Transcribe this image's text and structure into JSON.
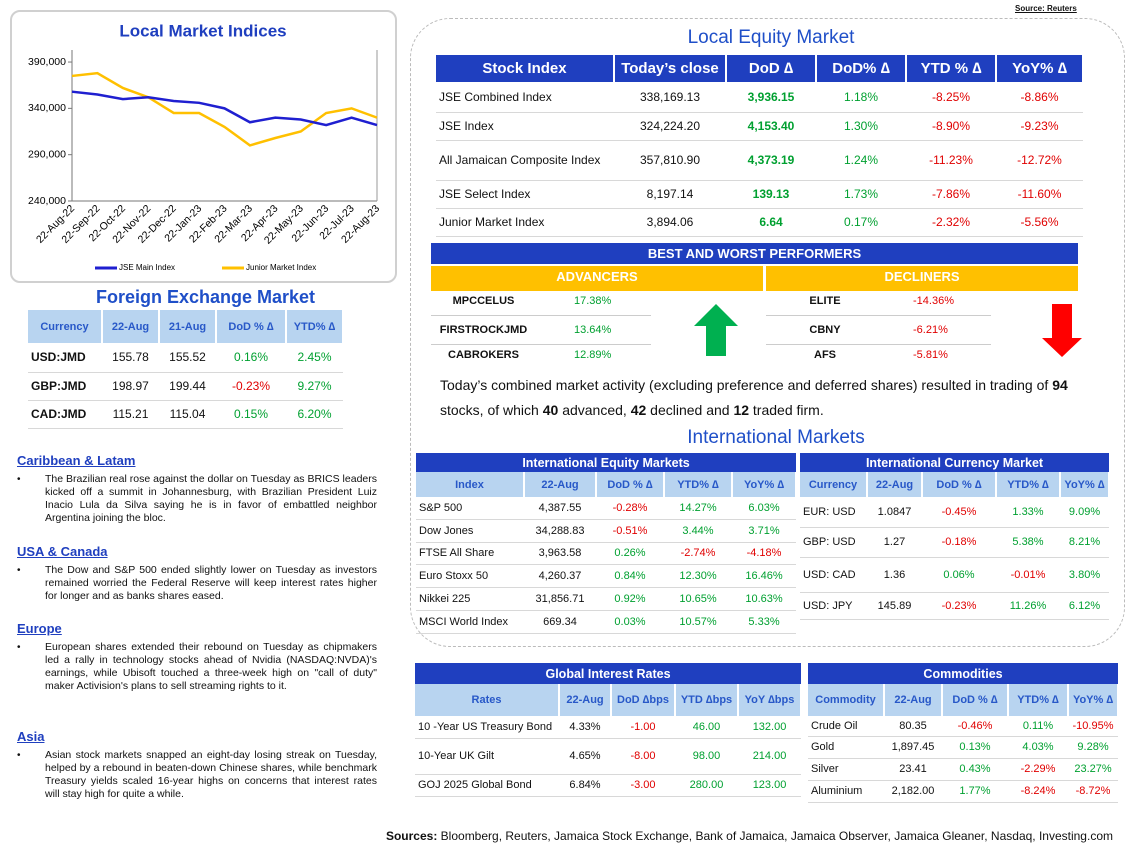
{
  "source_top": "Source: Reuters",
  "chart_data": {
    "type": "line",
    "title": "Local Market Indices",
    "categories": [
      "22-Aug-22",
      "22-Sep-22",
      "22-Oct-22",
      "22-Nov-22",
      "22-Dec-22",
      "22-Jan-23",
      "22-Feb-23",
      "22-Mar-23",
      "22-Apr-23",
      "22-May-23",
      "22-Jun-23",
      "22-Jul-23",
      "22-Aug-23"
    ],
    "series": [
      {
        "name": "JSE Main Index",
        "color": "#1f1fd0",
        "values": [
          358000,
          355000,
          350000,
          352000,
          348000,
          346000,
          340000,
          325000,
          330000,
          328000,
          322000,
          330000,
          322000
        ]
      },
      {
        "name": "Junior Market Index",
        "color": "#ffc000",
        "values": [
          375000,
          378000,
          362000,
          352000,
          335000,
          335000,
          320000,
          300000,
          308000,
          315000,
          335000,
          340000,
          330000
        ]
      }
    ],
    "ylim": [
      240000,
      403000
    ],
    "yticks": [
      {
        "value": 240000,
        "label": "240,000"
      },
      {
        "value": 290000,
        "label": "290,000"
      },
      {
        "value": 340000,
        "label": "340,000"
      },
      {
        "value": 390000,
        "label": "390,000"
      }
    ],
    "grid": false,
    "legend": "bottom"
  },
  "fx": {
    "title": "Foreign Exchange Market",
    "headers": [
      "Currency",
      "22-Aug",
      "21-Aug",
      "DoD % ∆",
      "YTD% ∆"
    ],
    "rows": [
      [
        "USD:JMD",
        "155.78",
        "155.52",
        "0.16%",
        "2.45%"
      ],
      [
        "GBP:JMD",
        "198.97",
        "199.44",
        "-0.23%",
        "9.27%"
      ],
      [
        "CAD:JMD",
        "115.21",
        "115.04",
        "0.15%",
        "6.20%"
      ]
    ]
  },
  "news": [
    {
      "heading": "Caribbean & Latam",
      "text": "The Brazilian real rose against the dollar on Tuesday as BRICS leaders kicked off a summit in Johannesburg, with Brazilian President Luiz Inacio Lula da Silva saying he is in favor of embattled neighbor Argentina joining the bloc."
    },
    {
      "heading": "USA & Canada",
      "text": "The Dow and S&P 500 ended slightly lower on Tuesday as investors remained worried the Federal Reserve will keep interest rates higher for longer and as banks shares eased."
    },
    {
      "heading": "Europe",
      "text": "European shares extended their rebound on Tuesday as chipmakers led a rally in technology stocks ahead of Nvidia (NASDAQ:NVDA)'s earnings, while Ubisoft touched a three-week high on \"call of duty\" maker Activision's plans to sell streaming rights to it."
    },
    {
      "heading": "Asia",
      "text": "Asian stock markets snapped an eight-day losing streak on Tuesday, helped by a rebound in beaten-down Chinese shares, while benchmark Treasury yields scaled 16-year highs on concerns that interest rates will stay high for quite a while."
    }
  ],
  "local_equity": {
    "title": "Local Equity Market",
    "headers": [
      "Stock Index",
      "Today’s close",
      "DoD  ∆",
      "DoD% ∆",
      "YTD % ∆",
      "YoY% ∆"
    ],
    "rows": [
      [
        "JSE Combined Index",
        "338,169.13",
        "3,936.15",
        "1.18%",
        "-8.25%",
        "-8.86%"
      ],
      [
        "JSE Index",
        "324,224.20",
        "4,153.40",
        "1.30%",
        "-8.90%",
        "-9.23%"
      ],
      [
        "All Jamaican Composite Index",
        "357,810.90",
        "4,373.19",
        "1.24%",
        "-11.23%",
        "-12.72%"
      ],
      [
        "JSE Select Index",
        "8,197.14",
        "139.13",
        "1.73%",
        "-7.86%",
        "-11.60%"
      ],
      [
        "Junior Market Index",
        "3,894.06",
        "6.64",
        "0.17%",
        "-2.32%",
        "-5.56%"
      ]
    ]
  },
  "performers": {
    "title": "BEST AND WORST PERFORMERS",
    "advancers_label": "ADVANCERS",
    "advancers": [
      [
        "MPCCELUS",
        "17.38%"
      ],
      [
        "FIRSTROCKJMD",
        "13.64%"
      ],
      [
        "CABROKERS",
        "12.89%"
      ]
    ],
    "decliners_label": "DECLINERS",
    "decliners": [
      [
        "ELITE",
        "-14.36%"
      ],
      [
        "CBNY",
        "-6.21%"
      ],
      [
        "AFS",
        "-5.81%"
      ]
    ]
  },
  "summary": [
    "Today’s combined market activity (excluding preference and deferred shares) resulted in trading of",
    "94",
    "stocks, of which",
    "40",
    "advanced,",
    "42",
    "declined and",
    "12",
    "traded firm."
  ],
  "international_title": "International Markets",
  "intl_equity": {
    "title": "International Equity Markets",
    "headers": [
      "Index",
      "22-Aug",
      "DoD % ∆",
      "YTD% ∆",
      "YoY% ∆"
    ],
    "rows": [
      [
        "S&P 500",
        "4,387.55",
        "-0.28%",
        "14.27%",
        "6.03%"
      ],
      [
        "Dow Jones",
        "34,288.83",
        "-0.51%",
        "3.44%",
        "3.71%"
      ],
      [
        "FTSE All Share",
        "3,963.58",
        "0.26%",
        "-2.74%",
        "-4.18%"
      ],
      [
        "Euro Stoxx 50",
        "4,260.37",
        "0.84%",
        "12.30%",
        "16.46%"
      ],
      [
        "Nikkei 225",
        "31,856.71",
        "0.92%",
        "10.65%",
        "10.63%"
      ],
      [
        "MSCI World Index",
        "669.34",
        "0.03%",
        "10.57%",
        "5.33%"
      ]
    ]
  },
  "intl_currency": {
    "title": "International Currency Market",
    "headers": [
      "Currency",
      "22-Aug",
      "DoD % ∆",
      "YTD% ∆",
      "YoY% ∆"
    ],
    "rows": [
      [
        "EUR: USD",
        "1.0847",
        "-0.45%",
        "1.33%",
        "9.09%"
      ],
      [
        "GBP: USD",
        "1.27",
        "-0.18%",
        "5.38%",
        "8.21%"
      ],
      [
        "USD: CAD",
        "1.36",
        "0.06%",
        "-0.01%",
        "3.80%"
      ],
      [
        "USD: JPY",
        "145.89",
        "-0.23%",
        "11.26%",
        "6.12%"
      ]
    ]
  },
  "interest_rates": {
    "title": "Global Interest Rates",
    "headers": [
      "Rates",
      "22-Aug",
      "DoD ∆bps",
      "YTD ∆bps",
      "YoY ∆bps"
    ],
    "rows": [
      [
        "10 -Year US Treasury Bond",
        "4.33%",
        "-1.00",
        "46.00",
        "132.00"
      ],
      [
        "10-Year UK Gilt",
        "4.65%",
        "-8.00",
        "98.00",
        "214.00"
      ],
      [
        "GOJ 2025 Global Bond",
        "6.84%",
        "-3.00",
        "280.00",
        "123.00"
      ]
    ]
  },
  "commodities": {
    "title": "Commodities",
    "headers": [
      "Commodity",
      "22-Aug",
      "DoD % ∆",
      "YTD% ∆",
      "YoY% ∆"
    ],
    "rows": [
      [
        "Crude Oil",
        "80.35",
        "-0.46%",
        "0.11%",
        "-10.95%"
      ],
      [
        "Gold",
        "1,897.45",
        "0.13%",
        "4.03%",
        "9.28%"
      ],
      [
        "Silver",
        "23.41",
        "0.43%",
        "-2.29%",
        "23.27%"
      ],
      [
        "Aluminium",
        "2,182.00",
        "1.77%",
        "-8.24%",
        "-8.72%"
      ]
    ]
  },
  "sources": {
    "label": "Sources:",
    "text": "Bloomberg, Reuters, Jamaica Stock Exchange, Bank of Jamaica, Jamaica Observer, Jamaica Gleaner, Nasdaq, Investing.com"
  }
}
